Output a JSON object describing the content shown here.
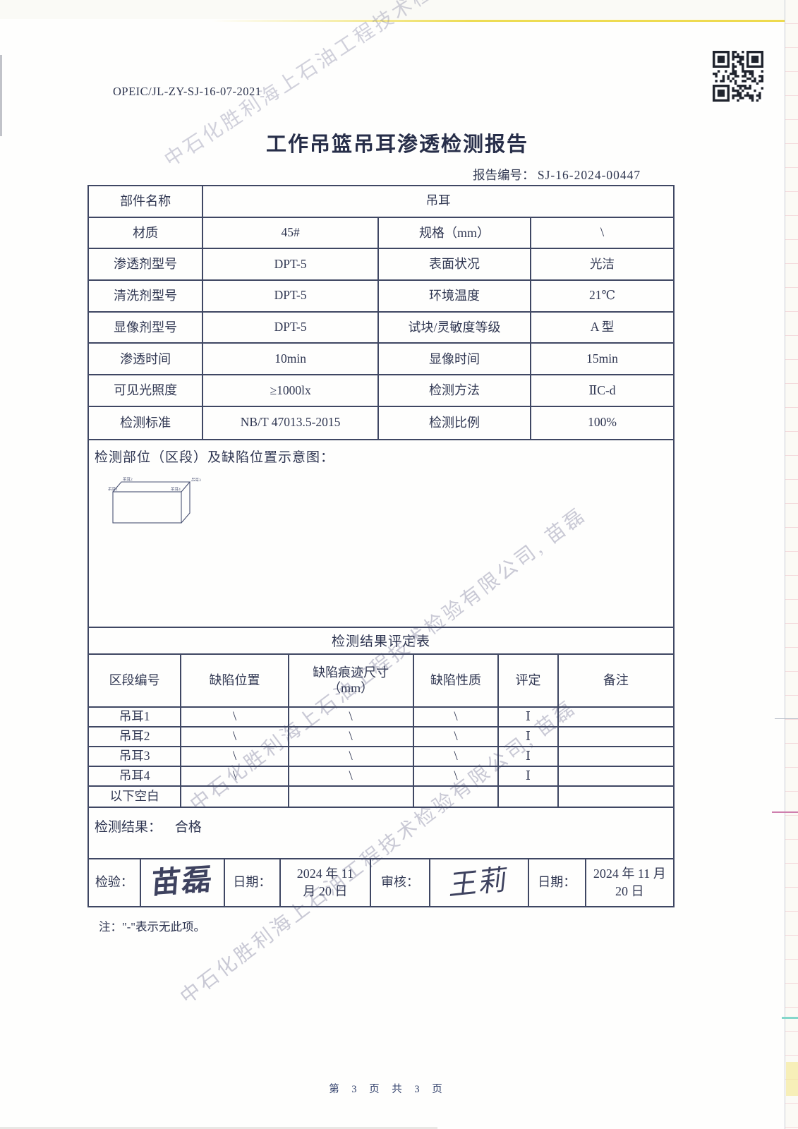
{
  "page": {
    "doc_number": "OPEIC/JL-ZY-SJ-16-07-2021",
    "title": "工作吊篮吊耳渗透检测报告",
    "report_no_label": "报告编号：",
    "report_no": "SJ-16-2024-00447",
    "note": "注：\"-\"表示无此项。",
    "footer": "第 3 页 共 3 页"
  },
  "watermark": {
    "text": "中石化胜利海上石油工程技术检验有限公司, 苗磊"
  },
  "info_table": {
    "row0": {
      "label": "部件名称",
      "value": "吊耳"
    },
    "rows": [
      {
        "l1": "材质",
        "v1": "45#",
        "l2": "规格（mm）",
        "v2": "\\"
      },
      {
        "l1": "渗透剂型号",
        "v1": "DPT-5",
        "l2": "表面状况",
        "v2": "光洁"
      },
      {
        "l1": "清洗剂型号",
        "v1": "DPT-5",
        "l2": "环境温度",
        "v2": "21℃"
      },
      {
        "l1": "显像剂型号",
        "v1": "DPT-5",
        "l2": "试块/灵敏度等级",
        "v2": "A 型"
      },
      {
        "l1": "渗透时间",
        "v1": "10min",
        "l2": "显像时间",
        "v2": "15min"
      },
      {
        "l1": "可见光照度",
        "v1": "≥1000lx",
        "l2": "检测方法",
        "v2": "ⅡC-d"
      },
      {
        "l1": "检测标准",
        "v1": "NB/T 47013.5-2015",
        "l2": "检测比例",
        "v2": "100%"
      }
    ]
  },
  "diagram": {
    "title": "检测部位（区段）及缺陷位置示意图：",
    "labels": [
      "吊耳1",
      "吊耳2",
      "吊耳3",
      "吊耳4"
    ]
  },
  "results": {
    "title": "检测结果评定表",
    "headers": {
      "h1": "区段编号",
      "h2": "缺陷位置",
      "h3_line1": "缺陷痕迹尺寸",
      "h3_line2": "（mm）",
      "h4": "缺陷性质",
      "h5": "评定",
      "h6": "备注"
    },
    "rows": [
      {
        "id": "吊耳1",
        "pos": "\\",
        "size": "\\",
        "nature": "\\",
        "rating": "Ⅰ",
        "remark": ""
      },
      {
        "id": "吊耳2",
        "pos": "\\",
        "size": "\\",
        "nature": "\\",
        "rating": "Ⅰ",
        "remark": ""
      },
      {
        "id": "吊耳3",
        "pos": "\\",
        "size": "\\",
        "nature": "\\",
        "rating": "Ⅰ",
        "remark": ""
      },
      {
        "id": "吊耳4",
        "pos": "\\",
        "size": "\\",
        "nature": "\\",
        "rating": "Ⅰ",
        "remark": ""
      }
    ],
    "empty_label": "以下空白",
    "result_label": "检测结果：",
    "result_value": "合格"
  },
  "signoff": {
    "inspect_label": "检验：",
    "inspect_name": "苗磊",
    "date1_label": "日期：",
    "date1_line1": "2024 年 11",
    "date1_line2": "月 20 日",
    "review_label": "审核：",
    "review_name": "王莉",
    "date2_label": "日期：",
    "date2_line1": "2024 年 11 月",
    "date2_line2": "20 日"
  },
  "colors": {
    "ink": "#3f4763",
    "watermark": "rgba(128,128,158,0.42)",
    "highlight_yellow": "#eddc54",
    "edge_pink": "#cf7fae",
    "edge_cyan": "#84d7cb"
  }
}
